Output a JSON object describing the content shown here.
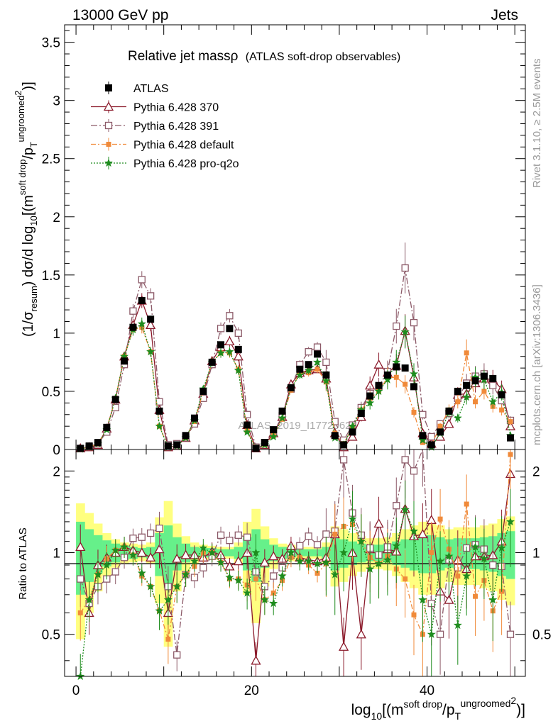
{
  "header": {
    "left": "13000 GeV pp",
    "right": "Jets"
  },
  "side_labels": {
    "rivet": "Rivet 3.1.10, ≥ 2.5M events",
    "mcplots": "mcplots.cern.ch [arXiv:1306.3436]"
  },
  "watermark": "ATLAS_2019_I1772062",
  "colors": {
    "atlas": "#000000",
    "p370": "#8b1a2b",
    "p391": "#8c5a68",
    "default": "#f08a3a",
    "proq2o": "#1e8c1e",
    "band_inner": "#66f08a",
    "band_outer": "#ffff80"
  },
  "chart_data": [
    {
      "type": "scatter",
      "panel": "main",
      "title_main": "Relative jet massρ",
      "title_sub": "(ATLAS soft-drop observables)",
      "ylabel": {
        "prefix": "(1/σ",
        "sub1": "resum",
        "mid": ") dσ/d log",
        "sub2": "10",
        "mid2": "[(m",
        "sup1": "soft drop",
        "mid3": "/p",
        "sub3": "T",
        "sup2": "ungroomed",
        "sup3": "2",
        "end": ")]"
      },
      "ylim": [
        0,
        3.65
      ],
      "xlim": [
        -1.3,
        51.2
      ],
      "yticks": [
        "0",
        "0.5",
        "1",
        "1.5",
        "2",
        "2.5",
        "3",
        "3.5"
      ],
      "legend": [
        "ATLAS",
        "Pythia 6.428 370",
        "Pythia 6.428 391",
        "Pythia 6.428 default",
        "Pythia 6.428 pro-q2o"
      ],
      "x": [
        0.5,
        1.5,
        2.5,
        3.5,
        4.5,
        5.5,
        6.5,
        7.5,
        8.5,
        9.5,
        10.5,
        11.5,
        12.5,
        13.5,
        14.5,
        15.5,
        16.5,
        17.5,
        18.5,
        19.5,
        20.5,
        21.5,
        22.5,
        23.5,
        24.5,
        25.5,
        26.5,
        27.5,
        28.5,
        29.5,
        30.5,
        31.5,
        32.5,
        33.5,
        34.5,
        35.5,
        36.5,
        37.5,
        38.5,
        39.5,
        40.5,
        41.5,
        42.5,
        43.5,
        44.5,
        45.5,
        46.5,
        47.5,
        48.5,
        49.5
      ],
      "series": [
        {
          "name": "ATLAS",
          "values": [
            0.01,
            0.03,
            0.06,
            0.19,
            0.43,
            0.76,
            1.05,
            1.28,
            1.12,
            0.33,
            0.03,
            0.04,
            0.12,
            0.27,
            0.5,
            0.75,
            0.9,
            1.04,
            0.86,
            0.21,
            0.01,
            0.06,
            0.17,
            0.33,
            0.53,
            0.69,
            0.73,
            0.82,
            0.64,
            0.12,
            0.04,
            0.15,
            0.31,
            0.46,
            0.55,
            0.64,
            0.71,
            0.7,
            0.54,
            0.12,
            0.04,
            0.15,
            0.33,
            0.5,
            0.55,
            0.59,
            0.63,
            0.61,
            0.47,
            0.1
          ]
        },
        {
          "name": "Pythia 6.428 370",
          "values": [
            0.01,
            0.02,
            0.04,
            0.18,
            0.43,
            0.8,
            1.07,
            1.28,
            1.07,
            0.34,
            0.02,
            0.03,
            0.1,
            0.25,
            0.48,
            0.76,
            0.88,
            0.93,
            0.8,
            0.21,
            0.01,
            0.04,
            0.14,
            0.28,
            0.56,
            0.66,
            0.68,
            0.69,
            0.61,
            0.14,
            0.02,
            0.11,
            0.28,
            0.55,
            0.73,
            0.66,
            0.72,
            1.02,
            0.62,
            0.14,
            0.05,
            0.11,
            0.22,
            0.47,
            0.48,
            0.57,
            0.61,
            0.6,
            0.52,
            0.2
          ]
        },
        {
          "name": "Pythia 6.428 391",
          "values": [
            0.008,
            0.025,
            0.05,
            0.15,
            0.36,
            0.73,
            1.19,
            1.46,
            1.32,
            0.41,
            0.04,
            0.05,
            0.1,
            0.22,
            0.44,
            0.73,
            1.04,
            1.15,
            1.0,
            0.3,
            0.02,
            0.06,
            0.14,
            0.29,
            0.52,
            0.73,
            0.84,
            0.88,
            0.75,
            0.24,
            0.08,
            0.21,
            0.36,
            0.48,
            0.54,
            0.67,
            1.06,
            1.56,
            1.09,
            0.3,
            0.11,
            0.22,
            0.31,
            0.44,
            0.57,
            0.63,
            0.65,
            0.55,
            0.42,
            0.25
          ]
        },
        {
          "name": "Pythia 6.428 default",
          "values": [
            0.006,
            0.02,
            0.05,
            0.18,
            0.44,
            0.8,
            1.03,
            1.05,
            0.84,
            0.2,
            0.02,
            0.03,
            0.1,
            0.24,
            0.5,
            0.75,
            0.83,
            0.83,
            0.69,
            0.16,
            0.01,
            0.04,
            0.12,
            0.26,
            0.51,
            0.66,
            0.66,
            0.69,
            0.58,
            0.14,
            0.05,
            0.19,
            0.34,
            0.44,
            0.5,
            0.62,
            0.62,
            0.56,
            0.32,
            0.06,
            0.04,
            0.2,
            0.34,
            0.41,
            0.83,
            0.41,
            0.5,
            0.37,
            0.34,
            0.24
          ]
        },
        {
          "name": "Pythia 6.428 pro-q2o",
          "values": [
            0.004,
            0.02,
            0.05,
            0.17,
            0.44,
            0.8,
            1.03,
            1.08,
            0.84,
            0.2,
            0.02,
            0.03,
            0.1,
            0.25,
            0.52,
            0.75,
            0.83,
            0.84,
            0.68,
            0.15,
            0.01,
            0.04,
            0.11,
            0.27,
            0.53,
            0.64,
            0.68,
            0.75,
            0.59,
            0.1,
            0.04,
            0.2,
            0.34,
            0.4,
            0.5,
            0.6,
            0.75,
            1.01,
            0.65,
            0.08,
            0.02,
            0.14,
            0.32,
            0.27,
            0.45,
            0.62,
            0.6,
            0.41,
            0.49,
            0.12
          ]
        }
      ]
    },
    {
      "type": "scatter",
      "panel": "ratio",
      "ylabel": "Ratio to ATLAS",
      "xlabel": {
        "prefix": "log",
        "sub1": "10",
        "mid": "[(m",
        "sup1": "soft drop",
        "mid2": "/p",
        "sub2": "T",
        "sup2": "ungroomed",
        "sup3": "2",
        "end": ")]"
      },
      "xticks": [
        "0",
        "20",
        "40"
      ],
      "yticks": [
        "0.5",
        "1",
        "2"
      ],
      "ylim": [
        0.35,
        2.4
      ],
      "band_inner": [
        0.3,
        0.22,
        0.16,
        0.11,
        0.08,
        0.06,
        0.05,
        0.04,
        0.05,
        0.18,
        0.26,
        0.14,
        0.08,
        0.05,
        0.04,
        0.04,
        0.03,
        0.03,
        0.05,
        0.14,
        0.22,
        0.12,
        0.07,
        0.05,
        0.04,
        0.03,
        0.03,
        0.03,
        0.05,
        0.14,
        0.12,
        0.1,
        0.08,
        0.07,
        0.07,
        0.08,
        0.1,
        0.12,
        0.14,
        0.16,
        0.16,
        0.14,
        0.12,
        0.13,
        0.13,
        0.13,
        0.14,
        0.15,
        0.18,
        0.2
      ],
      "band_outer": [
        0.52,
        0.4,
        0.28,
        0.18,
        0.12,
        0.09,
        0.08,
        0.07,
        0.09,
        0.35,
        0.55,
        0.28,
        0.15,
        0.09,
        0.07,
        0.06,
        0.05,
        0.05,
        0.09,
        0.3,
        0.45,
        0.25,
        0.13,
        0.08,
        0.07,
        0.05,
        0.05,
        0.05,
        0.09,
        0.25,
        0.22,
        0.18,
        0.15,
        0.13,
        0.13,
        0.14,
        0.18,
        0.22,
        0.26,
        0.3,
        0.3,
        0.26,
        0.22,
        0.24,
        0.24,
        0.24,
        0.26,
        0.28,
        0.33,
        0.36
      ],
      "series": [
        {
          "name": "Pythia 6.428 370",
          "values": [
            1.05,
            0.6,
            0.9,
            0.96,
            1.0,
            1.05,
            1.02,
            1.0,
            0.96,
            1.03,
            0.6,
            0.95,
            0.98,
            0.98,
            0.96,
            1.01,
            0.98,
            0.89,
            0.93,
            1.0,
            0.4,
            0.92,
            0.97,
            0.95,
            1.06,
            0.96,
            0.94,
            0.93,
            0.96,
            1.17,
            0.45,
            1.0,
            0.5,
            1.03,
            1.28,
            1.03,
            1.01,
            1.45,
            1.15,
            1.17,
            1.32,
            0.72,
            0.67,
            0.94,
            0.87,
            0.97,
            0.97,
            0.98,
            1.1,
            1.95
          ]
        },
        {
          "name": "Pythia 6.428 391",
          "values": [
            0.8,
            0.65,
            0.75,
            0.8,
            0.85,
            0.96,
            1.13,
            1.14,
            1.18,
            1.23,
            0.75,
            0.42,
            0.83,
            0.81,
            0.88,
            0.97,
            1.16,
            1.11,
            1.16,
            1.14,
            0.85,
            0.75,
            0.82,
            0.88,
            0.98,
            1.06,
            1.15,
            1.07,
            1.17,
            1.2,
            2.2,
            1.4,
            1.16,
            1.04,
            0.98,
            1.05,
            1.49,
            2.2,
            2.0,
            2.5,
            0.65,
            0.5,
            0.94,
            0.88,
            1.04,
            1.07,
            1.03,
            0.9,
            0.89,
            0.5
          ]
        },
        {
          "name": "Pythia 6.428 default",
          "values": [
            0.6,
            0.67,
            0.83,
            0.95,
            1.02,
            1.05,
            0.98,
            0.82,
            0.75,
            0.61,
            0.48,
            0.75,
            0.83,
            0.89,
            1.0,
            1.0,
            0.92,
            0.8,
            0.8,
            0.76,
            0.8,
            0.67,
            0.71,
            0.79,
            0.96,
            0.96,
            0.9,
            0.84,
            0.91,
            1.17,
            1.25,
            1.27,
            1.1,
            0.96,
            0.91,
            0.97,
            0.87,
            0.8,
            0.59,
            0.5,
            1.0,
            1.33,
            1.03,
            0.82,
            1.51,
            0.69,
            0.79,
            0.61,
            0.72,
            2.3
          ]
        },
        {
          "name": "Pythia 6.428 pro-q2o",
          "values": [
            0.35,
            0.67,
            0.83,
            0.9,
            1.02,
            1.05,
            0.98,
            0.84,
            0.75,
            0.61,
            0.67,
            0.75,
            0.83,
            0.93,
            1.04,
            1.0,
            0.92,
            0.81,
            0.79,
            0.71,
            1.0,
            0.67,
            0.65,
            0.82,
            1.0,
            0.93,
            0.93,
            0.91,
            0.92,
            0.83,
            1.0,
            1.33,
            1.1,
            0.87,
            0.91,
            0.94,
            1.06,
            1.44,
            1.2,
            0.67,
            0.5,
            0.93,
            0.97,
            0.54,
            0.82,
            1.05,
            0.95,
            0.67,
            1.04,
            1.3
          ]
        }
      ]
    }
  ]
}
